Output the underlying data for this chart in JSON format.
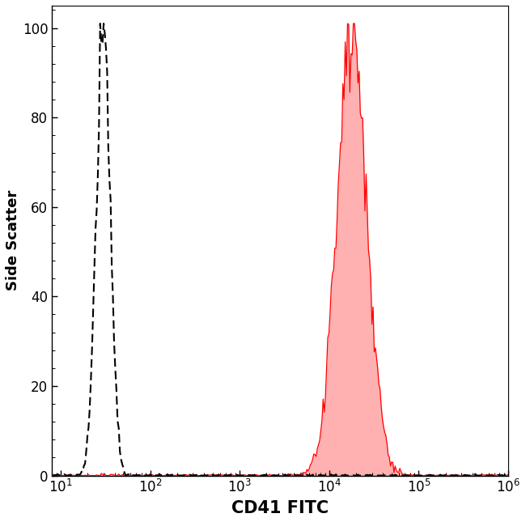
{
  "title": "",
  "xlabel": "CD41 FITC",
  "ylabel": "Side Scatter",
  "xlim_log": [
    8,
    1000000
  ],
  "ylim": [
    0,
    105
  ],
  "yticks": [
    0,
    20,
    40,
    60,
    80,
    100
  ],
  "background_color": "#ffffff",
  "dashed_peak": 30,
  "dashed_sigma": 0.18,
  "dashed_color": "#000000",
  "red_peak": 18000,
  "red_sigma": 0.38,
  "red_color": "#ff0000",
  "red_fill_color": "#ffb0b0",
  "xlabel_fontsize": 15,
  "ylabel_fontsize": 13,
  "tick_fontsize": 12,
  "figsize": [
    6.5,
    6.45
  ],
  "dpi": 100,
  "n_bins": 400,
  "n_points": 200000,
  "seed_main": 42,
  "seed_noise": 17
}
